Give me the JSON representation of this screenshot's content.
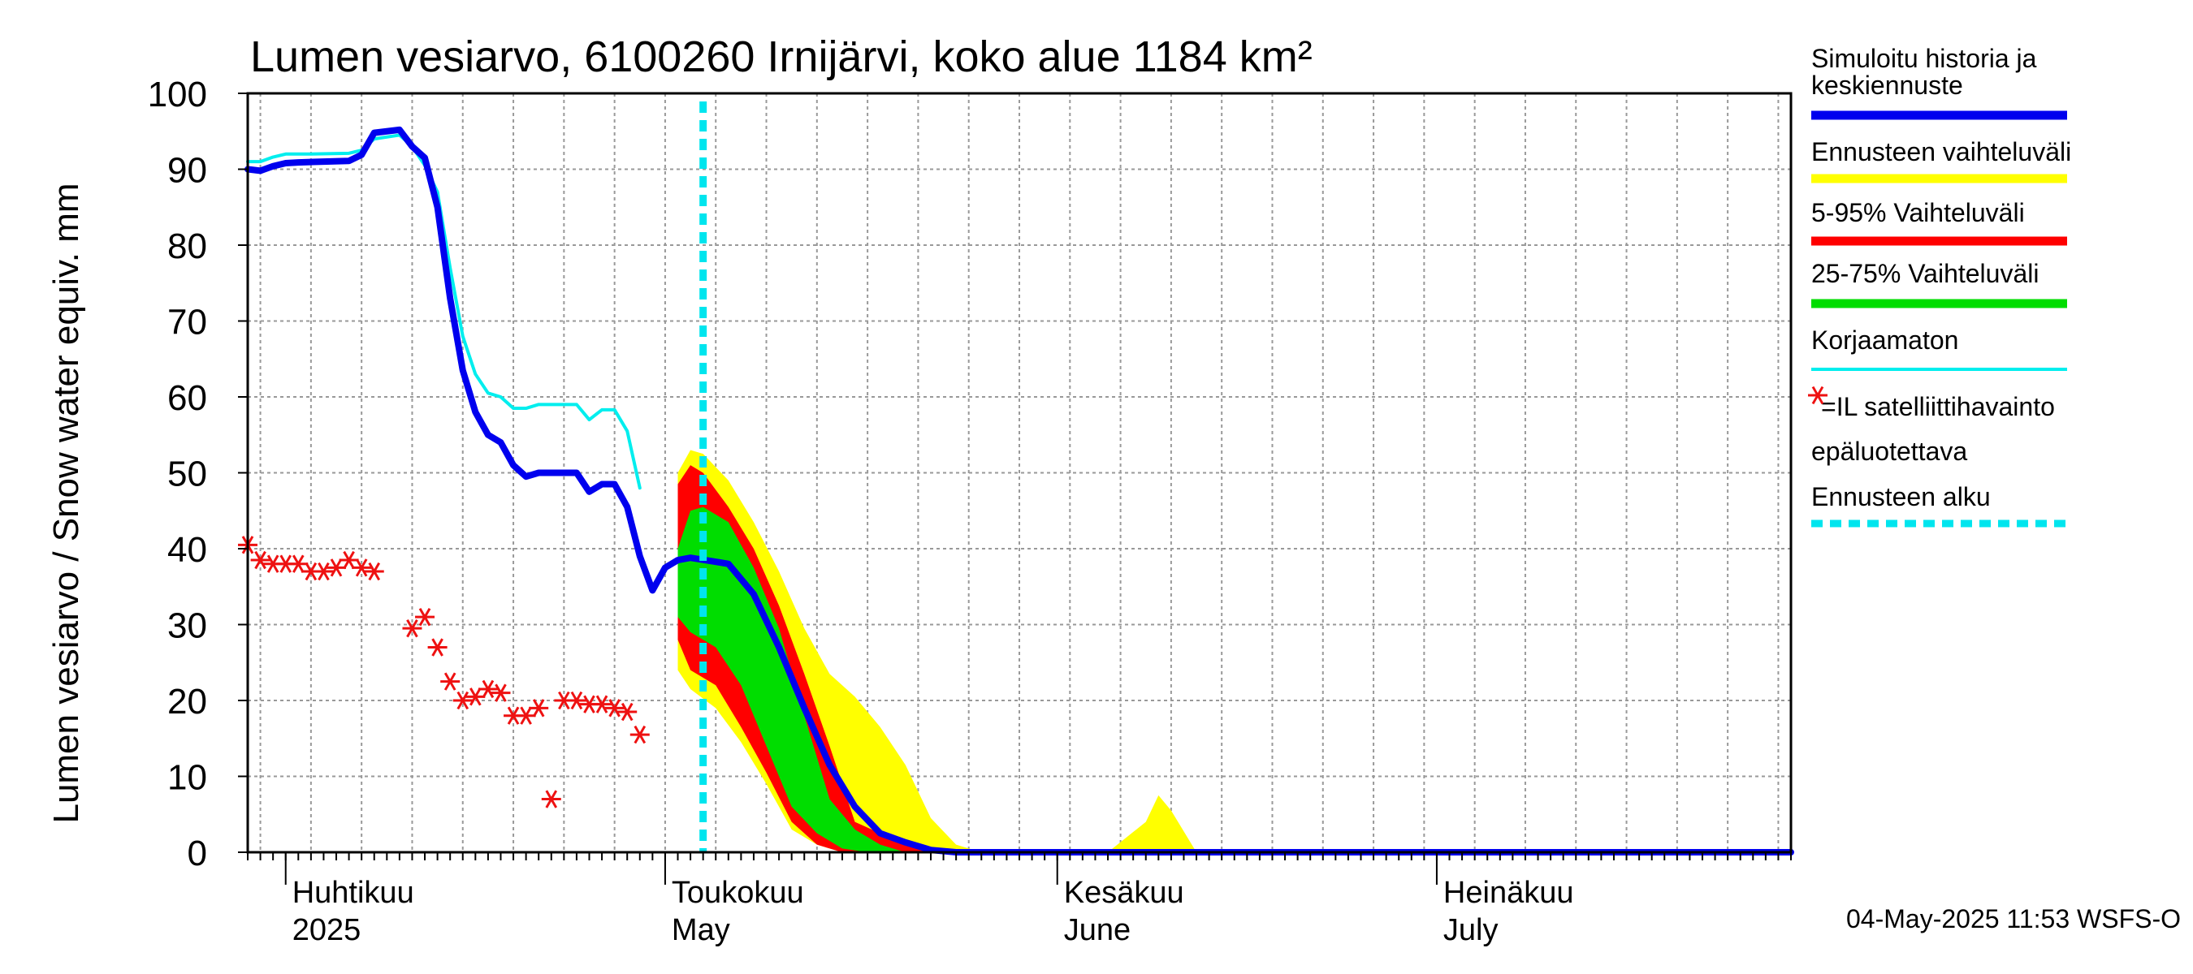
{
  "chart_data": {
    "type": "area",
    "title": "Lumen vesiarvo, 6100260 Irnijärvi, koko alue 1184 km²",
    "ylabel": "Lumen vesiarvo / Snow water equiv.    mm",
    "ylim": [
      0,
      100
    ],
    "yticks": [
      "0",
      "10",
      "20",
      "30",
      "40",
      "50",
      "60",
      "70",
      "80",
      "90",
      "100"
    ],
    "grid": true,
    "legend_position": "right",
    "x_range": [
      "2025-03-29",
      "2025-07-29"
    ],
    "month_labels": [
      {
        "date": "2025-04-01",
        "top": "Huhtikuu",
        "bottom": "2025"
      },
      {
        "date": "2025-05-01",
        "top": "Toukokuu",
        "bottom": "May"
      },
      {
        "date": "2025-06-01",
        "top": "Kesäkuu",
        "bottom": "June"
      },
      {
        "date": "2025-07-01",
        "top": "Heinäkuu",
        "bottom": "July"
      }
    ],
    "forecast_start": "2025-05-04",
    "colors": {
      "simulated": "#0000ee",
      "range_all": "#ffff00",
      "range_5_95": "#ff0000",
      "range_25_75": "#00dd00",
      "uncorrected": "#00eeee",
      "satellite": "#ee1111",
      "forecast_start": "#00e5ee",
      "grid": "#999999"
    },
    "series": [
      {
        "name": "Simuloitu historia ja keskiennuste",
        "points": [
          [
            "2025-03-29",
            90.0
          ],
          [
            "2025-03-30",
            89.8
          ],
          [
            "2025-03-31",
            90.4
          ],
          [
            "2025-04-01",
            90.8
          ],
          [
            "2025-04-02",
            90.9
          ],
          [
            "2025-04-04",
            91.0
          ],
          [
            "2025-04-06",
            91.1
          ],
          [
            "2025-04-07",
            91.9
          ],
          [
            "2025-04-08",
            94.8
          ],
          [
            "2025-04-10",
            95.2
          ],
          [
            "2025-04-11",
            93.0
          ],
          [
            "2025-04-12",
            91.5
          ],
          [
            "2025-04-13",
            85.0
          ],
          [
            "2025-04-14",
            73.0
          ],
          [
            "2025-04-15",
            63.5
          ],
          [
            "2025-04-16",
            58.0
          ],
          [
            "2025-04-17",
            55.0
          ],
          [
            "2025-04-18",
            54.0
          ],
          [
            "2025-04-19",
            51.0
          ],
          [
            "2025-04-20",
            49.5
          ],
          [
            "2025-04-21",
            50.0
          ],
          [
            "2025-04-24",
            50.0
          ],
          [
            "2025-04-25",
            47.5
          ],
          [
            "2025-04-26",
            48.5
          ],
          [
            "2025-04-27",
            48.5
          ],
          [
            "2025-04-28",
            45.5
          ],
          [
            "2025-04-29",
            39.0
          ],
          [
            "2025-04-30",
            34.5
          ],
          [
            "2025-05-01",
            37.5
          ],
          [
            "2025-05-02",
            38.5
          ],
          [
            "2025-05-03",
            38.8
          ],
          [
            "2025-05-06",
            38.0
          ],
          [
            "2025-05-08",
            34.0
          ],
          [
            "2025-05-10",
            27.0
          ],
          [
            "2025-05-12",
            19.0
          ],
          [
            "2025-05-14",
            11.5
          ],
          [
            "2025-05-16",
            6.0
          ],
          [
            "2025-05-18",
            2.5
          ],
          [
            "2025-05-20",
            1.3
          ],
          [
            "2025-05-22",
            0.3
          ],
          [
            "2025-05-24",
            0.0
          ],
          [
            "2025-07-29",
            0.0
          ]
        ]
      },
      {
        "name": "Korjaamaton",
        "points": [
          [
            "2025-03-29",
            91.0
          ],
          [
            "2025-03-30",
            91.0
          ],
          [
            "2025-03-31",
            91.6
          ],
          [
            "2025-04-01",
            92.0
          ],
          [
            "2025-04-03",
            92.0
          ],
          [
            "2025-04-06",
            92.1
          ],
          [
            "2025-04-07",
            92.5
          ],
          [
            "2025-04-08",
            94.0
          ],
          [
            "2025-04-10",
            94.5
          ],
          [
            "2025-04-11",
            93.0
          ],
          [
            "2025-04-12",
            90.5
          ],
          [
            "2025-04-13",
            87.0
          ],
          [
            "2025-04-14",
            77.0
          ],
          [
            "2025-04-15",
            68.0
          ],
          [
            "2025-04-16",
            63.0
          ],
          [
            "2025-04-17",
            60.5
          ],
          [
            "2025-04-18",
            60.0
          ],
          [
            "2025-04-19",
            58.5
          ],
          [
            "2025-04-20",
            58.5
          ],
          [
            "2025-04-21",
            59.0
          ],
          [
            "2025-04-24",
            59.0
          ],
          [
            "2025-04-25",
            57.0
          ],
          [
            "2025-04-26",
            58.3
          ],
          [
            "2025-04-27",
            58.3
          ],
          [
            "2025-04-28",
            55.5
          ],
          [
            "2025-04-29",
            48.0
          ]
        ]
      },
      {
        "name": "Ennusteen vaihteluväli",
        "upper": [
          [
            "2025-05-02",
            50.0
          ],
          [
            "2025-05-03",
            53.0
          ],
          [
            "2025-05-04",
            52.5
          ],
          [
            "2025-05-06",
            49.0
          ],
          [
            "2025-05-08",
            43.5
          ],
          [
            "2025-05-10",
            37.0
          ],
          [
            "2025-05-12",
            29.5
          ],
          [
            "2025-05-14",
            23.5
          ],
          [
            "2025-05-16",
            20.5
          ],
          [
            "2025-05-18",
            16.5
          ],
          [
            "2025-05-20",
            11.5
          ],
          [
            "2025-05-22",
            4.5
          ],
          [
            "2025-05-24",
            1.0
          ],
          [
            "2025-05-26",
            0.0
          ],
          [
            "2025-06-05",
            0.0
          ],
          [
            "2025-06-08",
            4.0
          ],
          [
            "2025-06-09",
            7.5
          ],
          [
            "2025-06-10",
            5.5
          ],
          [
            "2025-06-12",
            0.0
          ],
          [
            "2025-07-29",
            0.0
          ]
        ],
        "lower": [
          [
            "2025-05-02",
            24.0
          ],
          [
            "2025-05-03",
            21.5
          ],
          [
            "2025-05-05",
            19.0
          ],
          [
            "2025-05-07",
            14.5
          ],
          [
            "2025-05-09",
            9.0
          ],
          [
            "2025-05-11",
            3.0
          ],
          [
            "2025-05-13",
            1.0
          ],
          [
            "2025-05-15",
            0.0
          ],
          [
            "2025-07-29",
            0.0
          ]
        ]
      },
      {
        "name": "5-95% Vaihteluväli",
        "upper": [
          [
            "2025-05-02",
            48.5
          ],
          [
            "2025-05-03",
            51.0
          ],
          [
            "2025-05-04",
            50.0
          ],
          [
            "2025-05-06",
            45.5
          ],
          [
            "2025-05-08",
            40.0
          ],
          [
            "2025-05-10",
            32.5
          ],
          [
            "2025-05-12",
            23.5
          ],
          [
            "2025-05-14",
            14.0
          ],
          [
            "2025-05-16",
            4.0
          ],
          [
            "2025-05-18",
            2.5
          ],
          [
            "2025-05-20",
            1.5
          ],
          [
            "2025-05-22",
            0.5
          ],
          [
            "2025-05-24",
            0.0
          ]
        ],
        "lower": [
          [
            "2025-05-02",
            28.0
          ],
          [
            "2025-05-03",
            24.0
          ],
          [
            "2025-05-05",
            22.0
          ],
          [
            "2025-05-07",
            16.5
          ],
          [
            "2025-05-09",
            10.5
          ],
          [
            "2025-05-11",
            4.0
          ],
          [
            "2025-05-13",
            1.0
          ],
          [
            "2025-05-15",
            0.0
          ],
          [
            "2025-05-24",
            0.0
          ]
        ]
      },
      {
        "name": "25-75% Vaihteluväli",
        "upper": [
          [
            "2025-05-02",
            40.0
          ],
          [
            "2025-05-03",
            45.0
          ],
          [
            "2025-05-04",
            45.5
          ],
          [
            "2025-05-06",
            43.5
          ],
          [
            "2025-05-08",
            37.5
          ],
          [
            "2025-05-10",
            29.5
          ],
          [
            "2025-05-12",
            18.0
          ],
          [
            "2025-05-14",
            7.0
          ],
          [
            "2025-05-16",
            3.0
          ],
          [
            "2025-05-18",
            1.0
          ],
          [
            "2025-05-20",
            0.0
          ]
        ],
        "lower": [
          [
            "2025-05-02",
            31.0
          ],
          [
            "2025-05-03",
            29.0
          ],
          [
            "2025-05-05",
            27.0
          ],
          [
            "2025-05-07",
            22.0
          ],
          [
            "2025-05-09",
            14.0
          ],
          [
            "2025-05-11",
            6.0
          ],
          [
            "2025-05-13",
            2.5
          ],
          [
            "2025-05-15",
            0.5
          ],
          [
            "2025-05-17",
            0.0
          ],
          [
            "2025-05-20",
            0.0
          ]
        ]
      },
      {
        "name": "=IL satelliittihavainto epäluotettava",
        "points": [
          [
            "2025-03-29",
            40.5
          ],
          [
            "2025-03-30",
            38.5
          ],
          [
            "2025-03-31",
            38.0
          ],
          [
            "2025-04-01",
            38.0
          ],
          [
            "2025-04-02",
            38.0
          ],
          [
            "2025-04-03",
            37.0
          ],
          [
            "2025-04-04",
            37.0
          ],
          [
            "2025-04-05",
            37.5
          ],
          [
            "2025-04-06",
            38.5
          ],
          [
            "2025-04-07",
            37.5
          ],
          [
            "2025-04-08",
            37.0
          ],
          [
            "2025-04-11",
            29.5
          ],
          [
            "2025-04-12",
            31.0
          ],
          [
            "2025-04-13",
            27.0
          ],
          [
            "2025-04-14",
            22.5
          ],
          [
            "2025-04-15",
            20.0
          ],
          [
            "2025-04-16",
            20.5
          ],
          [
            "2025-04-17",
            21.5
          ],
          [
            "2025-04-18",
            21.0
          ],
          [
            "2025-04-19",
            18.0
          ],
          [
            "2025-04-20",
            18.0
          ],
          [
            "2025-04-21",
            19.0
          ],
          [
            "2025-04-22",
            7.0
          ],
          [
            "2025-04-23",
            20.0
          ],
          [
            "2025-04-24",
            20.0
          ],
          [
            "2025-04-25",
            19.5
          ],
          [
            "2025-04-26",
            19.5
          ],
          [
            "2025-04-27",
            19.0
          ],
          [
            "2025-04-28",
            18.5
          ],
          [
            "2025-04-29",
            15.5
          ]
        ]
      }
    ],
    "legend": [
      {
        "lines": [
          "Simuloitu historia ja",
          "keskiennuste"
        ],
        "kind": "line",
        "color_key": "simulated"
      },
      {
        "lines": [
          "Ennusteen vaihteluväli"
        ],
        "kind": "line",
        "color_key": "range_all"
      },
      {
        "lines": [
          "5-95% Vaihteluväli"
        ],
        "kind": "line",
        "color_key": "range_5_95"
      },
      {
        "lines": [
          "25-75% Vaihteluväli"
        ],
        "kind": "line",
        "color_key": "range_25_75"
      },
      {
        "lines": [
          "Korjaamaton"
        ],
        "kind": "thinline",
        "color_key": "uncorrected"
      },
      {
        "lines": [
          "=IL satelliittihavainto",
          "epäluotettava"
        ],
        "kind": "marker",
        "color_key": "satellite"
      },
      {
        "lines": [
          "Ennusteen alku"
        ],
        "kind": "dashed",
        "color_key": "forecast_start"
      }
    ],
    "footer": "04-May-2025 11:53 WSFS-O"
  }
}
